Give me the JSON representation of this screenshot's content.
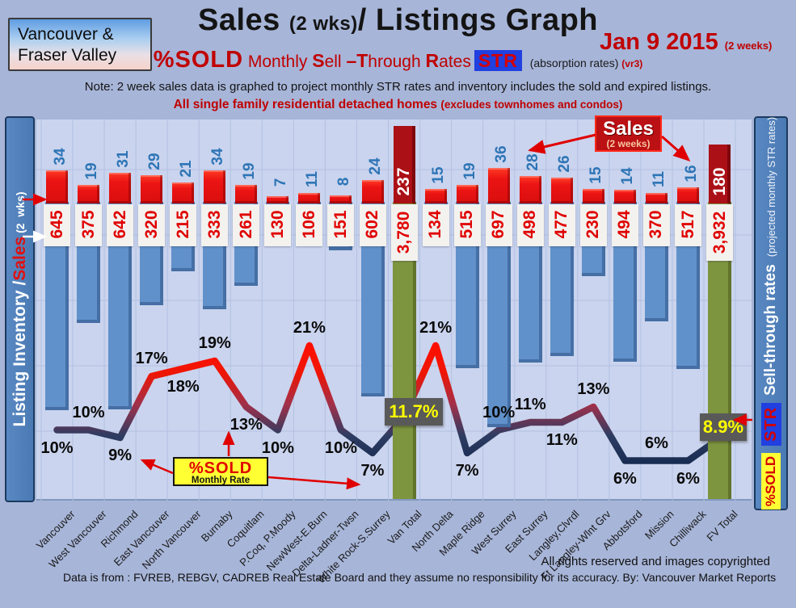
{
  "header": {
    "region": {
      "line1": "Vancouver &",
      "line2": "Fraser Valley"
    },
    "title": {
      "main_pre": "Sales ",
      "wks": "(2 wks)",
      "main_post": "/ Listings Graph"
    },
    "date": {
      "text": "Jan 9 2015 ",
      "note": "(2 weeks)"
    },
    "subtitle": {
      "pctsold": "%SOLD",
      "m1": " Monthly ",
      "s_cap": "S",
      "s_rest": "ell ",
      "t_cap": "–T",
      "t_rest": "hrough ",
      "r_cap": "R",
      "r_rest": "ates",
      "str": "STR",
      "absorption": "(absorption rates) ",
      "version": "(vr3)"
    },
    "note": "Note: 2 week sales data is graphed to project monthly STR rates and inventory includes the sold and expired listings.",
    "scope": "All single family residential detached homes ",
    "scope_paren": "(excludes townhomes and condos)"
  },
  "left_axis": {
    "inventory": "Listing Inventory / ",
    "sales": "Sales",
    "wks": " (2  wks)"
  },
  "right_axis": {
    "title": "Sell-through rates ",
    "subtitle": "(projected monthly STR rates)",
    "str_chip": "STR",
    "pctsold_chip": "%SOLD"
  },
  "annotations": {
    "sales_legend": {
      "title": "Sales",
      "sub": "(2 weeks)"
    },
    "pctsold_box": {
      "line1": "%SOLD",
      "line2": "Monthly Rate"
    },
    "van_total_rate": "11.7%",
    "fv_total_rate": "8.9%"
  },
  "footer": {
    "rights": "All rights reserved and  images copyrighted",
    "source": "Data is from : FVREB, REBGV, CADREB Real Estate Board and they assume no responsibility for its accuracy. By: Vancouver Market Reports"
  },
  "colors": {
    "sales_bar": "#ec1414",
    "total_sales_bar": "#ab1016",
    "inventory_bar": "#6191ca",
    "total_inventory_bar": "#7e953f",
    "sales_count_text": "#2e75b6",
    "inventory_count_text": "#e00000",
    "rate_line_high": "#ff0000",
    "rate_line_low": "#152a50",
    "rate_box_bg": "#595959",
    "rate_box_text": "#ffff00",
    "accent_red": "#c00000",
    "axis_bar_blue": "#4f81bd"
  },
  "chart_data": {
    "type": "bar",
    "title": "Sales (2 wks)/ Listings Graph",
    "date": "Jan 9 2015",
    "legend_position": "top-right",
    "grid": true,
    "categories": [
      "Vancouver",
      "West Vancouver",
      "Richmond",
      "East Vancouver",
      "North Vancouver",
      "Burnaby",
      "Coquitlam",
      "P.Coq, P.Moody",
      "NewWest-E.Burn",
      "Delta-Ladner-Twsn",
      "White Rock-S.Surrey",
      "Van Total",
      "North Delta",
      "Maple Ridge",
      "West Surrey",
      "East Surrey",
      "Langley,Clvrdl",
      "Ft Langley-Wlnt Grv",
      "Abbotsford",
      "Mission",
      "Chilliwack",
      "FV Total"
    ],
    "series": [
      {
        "name": "Sales (2 weeks)",
        "values": [
          34,
          19,
          31,
          29,
          21,
          34,
          19,
          7,
          11,
          8,
          24,
          237,
          15,
          19,
          36,
          28,
          26,
          15,
          14,
          11,
          16,
          180
        ]
      },
      {
        "name": "Listing Inventory",
        "values": [
          645,
          375,
          642,
          320,
          215,
          333,
          261,
          130,
          106,
          151,
          602,
          3780,
          134,
          515,
          697,
          498,
          477,
          230,
          494,
          370,
          517,
          3932
        ]
      },
      {
        "name": "Sell-through rate %",
        "values": [
          10,
          10,
          9,
          17,
          18,
          19,
          13,
          10,
          21,
          10,
          7,
          11.7,
          21,
          7,
          10,
          11,
          11,
          13,
          6,
          6,
          6,
          8.9
        ]
      }
    ],
    "inventory_labels": [
      "645",
      "375",
      "642",
      "320",
      "215",
      "333",
      "261",
      "130",
      "106",
      "151",
      "602",
      "3,780",
      "134",
      "515",
      "697",
      "498",
      "477",
      "230",
      "494",
      "370",
      "517",
      "3,932"
    ],
    "pct_labels": [
      "10%",
      "10%",
      "9%",
      "17%",
      "18%",
      "19%",
      "13%",
      "10%",
      "21%",
      "10%",
      "7%",
      "11.7%",
      "21%",
      "7%",
      "10%",
      "11%",
      "11%",
      "13%",
      "6%",
      "6%",
      "6%",
      "8.9%"
    ],
    "pct_label_pos": [
      "below",
      "above",
      "below",
      "above",
      "below",
      "above",
      "below",
      "below",
      "above",
      "below",
      "below",
      "box",
      "above",
      "below",
      "above",
      "above",
      "below",
      "above",
      "below",
      "above",
      "below",
      "box"
    ],
    "total_indices": [
      11,
      21
    ],
    "ylabel_left": "Listing Inventory / Sales (2 wks)",
    "ylabel_right": "Sell-through rates (projected monthly STR rates)"
  }
}
